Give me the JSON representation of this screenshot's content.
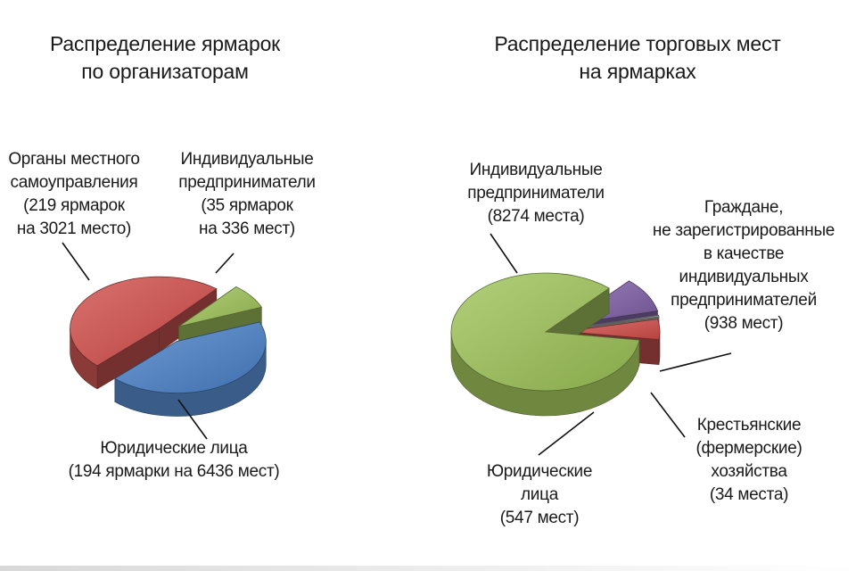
{
  "chart_data": [
    {
      "type": "pie",
      "title": "Распределение ярмарок по организаторам",
      "title_lines": [
        "Распределение ярмарок",
        "по организаторам"
      ],
      "categories": [
        "Органы местного самоуправления",
        "Индивидуальные предприниматели",
        "Юридические лица"
      ],
      "values": [
        219,
        35,
        194
      ],
      "labels": [
        {
          "lines": [
            "Органы местного",
            "самоуправления",
            "(219 ярмарок",
            "на 3021 место)"
          ]
        },
        {
          "lines": [
            "Индивидуальные",
            "предприниматели",
            "(35 ярмарок",
            "на 336 мест)"
          ]
        },
        {
          "lines": [
            "Юридические лица",
            "(194 ярмарки на 6436 мест)"
          ]
        }
      ],
      "colors": [
        "#c0504d",
        "#9bbb59",
        "#4f81bd"
      ],
      "style": "3d-exploded"
    },
    {
      "type": "pie",
      "title": "Распределение торговых мест на ярмарках",
      "title_lines": [
        "Распределение торговых мест",
        "на ярмарках"
      ],
      "categories": [
        "Индивидуальные предприниматели",
        "Граждане, не зарегистрированные в качестве индивидуальных предпринимателей",
        "Крестьянские (фермерские) хозяйства",
        "Юридические лица"
      ],
      "values": [
        8274,
        938,
        34,
        547
      ],
      "labels": [
        {
          "lines": [
            "Индивидуальные",
            "предприниматели",
            "(8274 места)"
          ]
        },
        {
          "lines": [
            "Граждане,",
            "не зарегистрированные",
            "в качестве",
            "индивидуальных",
            "предпринимателей",
            "(938 мест)"
          ]
        },
        {
          "lines": [
            "Крестьянские",
            "(фермерские)",
            "хозяйства",
            "(34 места)"
          ]
        },
        {
          "lines": [
            "Юридические",
            "лица",
            "(547 мест)"
          ]
        }
      ],
      "colors": [
        "#9bbb59",
        "#8064a2",
        "#a5a5a5",
        "#c0504d"
      ],
      "style": "3d-exploded"
    }
  ]
}
